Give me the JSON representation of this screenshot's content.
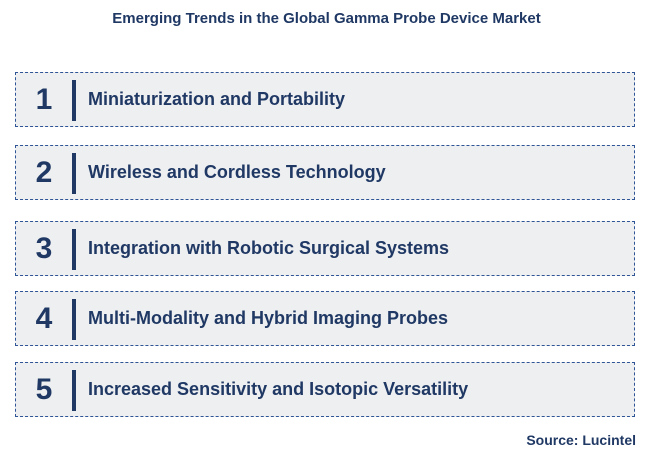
{
  "title": "Emerging Trends in the Global Gamma Probe Device Market",
  "items": [
    {
      "number": "1",
      "label": "Miniaturization and Portability"
    },
    {
      "number": "2",
      "label": "Wireless and Cordless Technology"
    },
    {
      "number": "3",
      "label": "Integration with Robotic Surgical Systems"
    },
    {
      "number": "4",
      "label": "Multi-Modality and Hybrid Imaging Probes"
    },
    {
      "number": "5",
      "label": "Increased Sensitivity and Isotopic Versatility"
    }
  ],
  "source": "Source: Lucintel",
  "colors": {
    "text": "#1f3864",
    "box_fill": "#eeeff1",
    "box_border": "#2f5597"
  }
}
